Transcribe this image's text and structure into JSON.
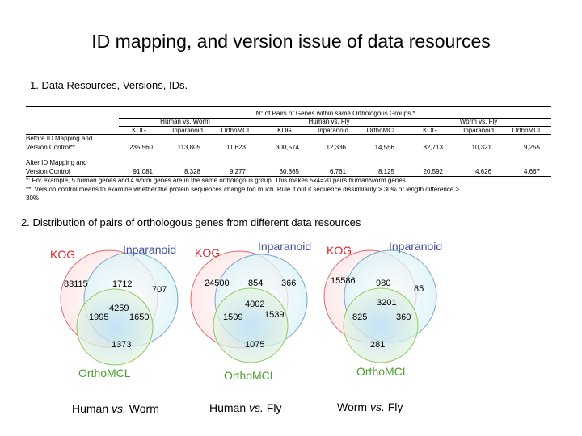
{
  "slide": {
    "title": "ID mapping, and version issue of data resources",
    "section1": "1. Data Resources, Versions, IDs.",
    "section2": "2. Distribution of pairs of orthologous genes from different data resources"
  },
  "table": {
    "header_main": "N° of Pairs of Genes within same Orthologous Groups *",
    "groups": [
      "Human vs. Worm",
      "Human vs. Fly",
      "Worm vs. Fly"
    ],
    "methods": [
      "KOG",
      "Inparanoid",
      "OrthoMCL",
      "KOG",
      "Inparanoid",
      "OrthoMCL",
      "KOG",
      "Inparanoid",
      "OrthoMCL"
    ],
    "rows": [
      {
        "label1": "Before ID Mapping and",
        "label2": "Version Control**",
        "values": [
          "235,560",
          "113,805",
          "11,623",
          "300,574",
          "12,336",
          "14,556",
          "82,713",
          "10,321",
          "9,255"
        ]
      },
      {
        "label1": "After ID Mapping and",
        "label2": "Version Control",
        "values": [
          "91,081",
          "8,328",
          "9,277",
          "30,865",
          "6,761",
          "8,125",
          "20,592",
          "4,626",
          "4,667"
        ]
      }
    ],
    "footnote1": "*: For example, 5 human genes and 4 worm genes are in the same orthologous group. This makes 5x4=20 pairs human/worm genes",
    "footnote2a": "**: Version control means to examine whether the protein sequences change too much. Rule it out if sequence dissimilarity > 30% or length difference >",
    "footnote2b": "30%"
  },
  "venn_colors": {
    "kog_stroke": "#e06a6a",
    "inparanoid_stroke": "#7aa6c8",
    "orthomcl_stroke": "#8fc86a",
    "kog_label": "#e8262a",
    "inparanoid_label": "#3f4fa0",
    "orthomcl_label": "#4aa02c"
  },
  "venns": [
    {
      "labels": {
        "a": "KOG",
        "b": "Inparanoid",
        "c": "OrthoMCL"
      },
      "regions": {
        "a_only": "83115",
        "ab": "1712",
        "b_only": "707",
        "abc": "4259",
        "ac": "1995",
        "bc": "1650",
        "c_only": "1373"
      },
      "caption_pre": "Human ",
      "caption_vs": "vs.",
      "caption_post": " Worm"
    },
    {
      "labels": {
        "a": "KOG",
        "b": "Inparanoid",
        "c": "OrthoMCL"
      },
      "regions": {
        "a_only": "24500",
        "ab": "854",
        "b_only": "366",
        "abc": "4002",
        "ac": "1509",
        "bc": "1539",
        "c_only": "1075"
      },
      "caption_pre": "Human ",
      "caption_vs": "vs.",
      "caption_post": " Fly"
    },
    {
      "labels": {
        "a": "KOG",
        "b": "Inparanoid",
        "c": "OrthoMCL"
      },
      "regions": {
        "a_only": "15586",
        "ab": "980",
        "b_only": "85",
        "abc": "3201",
        "ac": "825",
        "bc": "360",
        "c_only": "281"
      },
      "caption_pre": "Worm ",
      "caption_vs": "vs.",
      "caption_post": " Fly"
    }
  ]
}
